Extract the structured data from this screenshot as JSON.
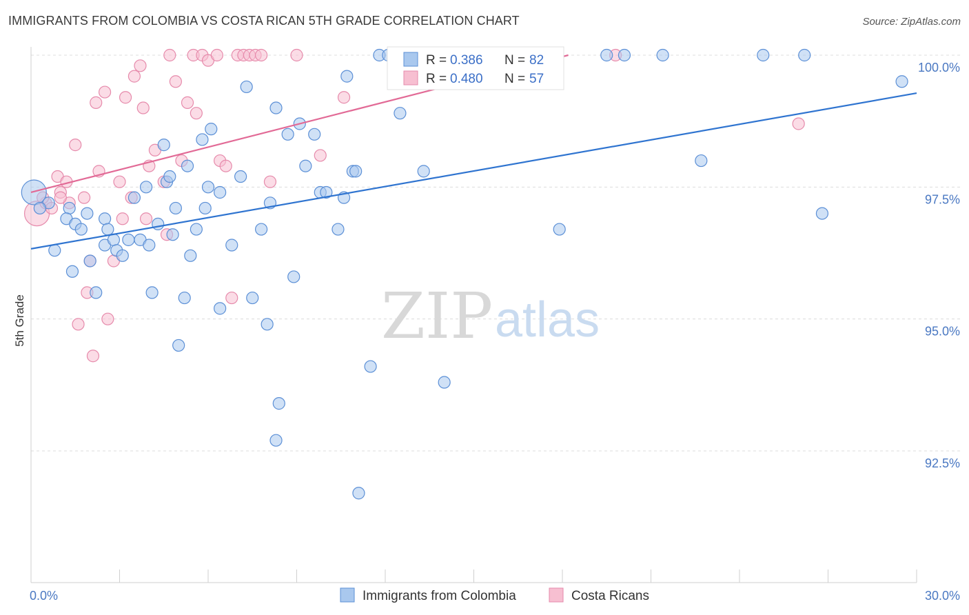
{
  "header": {
    "title": "IMMIGRANTS FROM COLOMBIA VS COSTA RICAN 5TH GRADE CORRELATION CHART",
    "source": "Source: ZipAtlas.com"
  },
  "watermark": {
    "zip": "ZIP",
    "atlas": "atlas"
  },
  "colors": {
    "blue_fill": "#a9c8ee",
    "blue_stroke": "#5b8fd6",
    "blue_line": "#2f74d0",
    "pink_fill": "#f7bfd1",
    "pink_stroke": "#e68aab",
    "pink_line": "#e26a96",
    "grid": "#dcdcdc",
    "tick_text": "#4a78c2"
  },
  "legend": {
    "rows": [
      {
        "r_label": "R =",
        "r_value": "0.386",
        "n_label": "N =",
        "n_value": "82"
      },
      {
        "r_label": "R =",
        "r_value": "0.480",
        "n_label": "N =",
        "n_value": "57"
      }
    ]
  },
  "bottom_legend": [
    "Immigrants from Colombia",
    "Costa Ricans"
  ],
  "chart_data": {
    "type": "scatter",
    "title": "IMMIGRANTS FROM COLOMBIA VS COSTA RICAN 5TH GRADE CORRELATION CHART",
    "ylabel": "5th Grade",
    "xlabel": "",
    "xlim": [
      0,
      30
    ],
    "ylim": [
      90.0,
      100.2
    ],
    "x_tick_labels": [
      "0.0%",
      "30.0%"
    ],
    "y_ticks": [
      92.5,
      95.0,
      97.5,
      100.0
    ],
    "y_tick_labels": [
      "92.5%",
      "95.0%",
      "97.5%",
      "100.0%"
    ],
    "grid": true,
    "series": [
      {
        "name": "Immigrants from Colombia",
        "R": 0.386,
        "N": 82,
        "trend": {
          "x": [
            0,
            30
          ],
          "y": [
            96.33,
            99.28
          ]
        },
        "points": [
          {
            "x": 0.1,
            "y": 97.4,
            "big": true
          },
          {
            "x": 0.6,
            "y": 97.2
          },
          {
            "x": 1.3,
            "y": 97.1
          },
          {
            "x": 1.9,
            "y": 97.0
          },
          {
            "x": 1.2,
            "y": 96.9
          },
          {
            "x": 1.5,
            "y": 96.8
          },
          {
            "x": 2.5,
            "y": 96.9
          },
          {
            "x": 1.7,
            "y": 96.7
          },
          {
            "x": 0.8,
            "y": 96.3
          },
          {
            "x": 1.4,
            "y": 95.9
          },
          {
            "x": 2.0,
            "y": 96.1
          },
          {
            "x": 2.2,
            "y": 95.5
          },
          {
            "x": 2.6,
            "y": 96.7
          },
          {
            "x": 2.5,
            "y": 96.4
          },
          {
            "x": 2.8,
            "y": 96.5
          },
          {
            "x": 2.9,
            "y": 96.3
          },
          {
            "x": 3.1,
            "y": 96.2
          },
          {
            "x": 3.3,
            "y": 96.5
          },
          {
            "x": 3.5,
            "y": 97.3
          },
          {
            "x": 3.7,
            "y": 96.5
          },
          {
            "x": 3.9,
            "y": 97.5
          },
          {
            "x": 4.0,
            "y": 96.4
          },
          {
            "x": 4.3,
            "y": 96.8
          },
          {
            "x": 4.1,
            "y": 95.5
          },
          {
            "x": 4.5,
            "y": 98.3
          },
          {
            "x": 4.6,
            "y": 97.6
          },
          {
            "x": 4.7,
            "y": 97.7
          },
          {
            "x": 4.8,
            "y": 96.6
          },
          {
            "x": 4.9,
            "y": 97.1
          },
          {
            "x": 5.0,
            "y": 94.5
          },
          {
            "x": 5.2,
            "y": 95.4
          },
          {
            "x": 5.3,
            "y": 97.9
          },
          {
            "x": 5.4,
            "y": 96.2
          },
          {
            "x": 5.6,
            "y": 96.7
          },
          {
            "x": 5.8,
            "y": 98.4
          },
          {
            "x": 5.9,
            "y": 97.1
          },
          {
            "x": 6.0,
            "y": 97.5
          },
          {
            "x": 6.1,
            "y": 98.6
          },
          {
            "x": 6.4,
            "y": 97.4
          },
          {
            "x": 6.4,
            "y": 95.2
          },
          {
            "x": 6.8,
            "y": 96.4
          },
          {
            "x": 7.1,
            "y": 97.7
          },
          {
            "x": 7.3,
            "y": 99.4
          },
          {
            "x": 7.5,
            "y": 95.4
          },
          {
            "x": 7.8,
            "y": 96.7
          },
          {
            "x": 8.0,
            "y": 94.9
          },
          {
            "x": 8.1,
            "y": 97.2
          },
          {
            "x": 8.3,
            "y": 99.0
          },
          {
            "x": 8.4,
            "y": 93.4
          },
          {
            "x": 8.3,
            "y": 92.7
          },
          {
            "x": 8.7,
            "y": 98.5
          },
          {
            "x": 8.9,
            "y": 95.8
          },
          {
            "x": 9.1,
            "y": 98.7
          },
          {
            "x": 9.3,
            "y": 97.9
          },
          {
            "x": 9.6,
            "y": 98.5
          },
          {
            "x": 9.8,
            "y": 97.4
          },
          {
            "x": 10.0,
            "y": 97.4
          },
          {
            "x": 10.4,
            "y": 96.7
          },
          {
            "x": 10.6,
            "y": 97.3
          },
          {
            "x": 10.7,
            "y": 99.6
          },
          {
            "x": 10.9,
            "y": 97.8
          },
          {
            "x": 11.0,
            "y": 97.8
          },
          {
            "x": 11.1,
            "y": 91.7
          },
          {
            "x": 11.5,
            "y": 94.1
          },
          {
            "x": 11.8,
            "y": 100.0
          },
          {
            "x": 12.1,
            "y": 100.0
          },
          {
            "x": 12.3,
            "y": 100.0
          },
          {
            "x": 12.5,
            "y": 98.9
          },
          {
            "x": 13.3,
            "y": 97.8
          },
          {
            "x": 14.0,
            "y": 93.8
          },
          {
            "x": 15.2,
            "y": 100.0
          },
          {
            "x": 16.2,
            "y": 100.0
          },
          {
            "x": 17.9,
            "y": 96.7
          },
          {
            "x": 19.5,
            "y": 100.0
          },
          {
            "x": 20.1,
            "y": 100.0
          },
          {
            "x": 21.4,
            "y": 100.0
          },
          {
            "x": 22.7,
            "y": 98.0
          },
          {
            "x": 24.8,
            "y": 100.0
          },
          {
            "x": 26.2,
            "y": 100.0
          },
          {
            "x": 26.8,
            "y": 97.0
          },
          {
            "x": 29.5,
            "y": 99.5
          },
          {
            "x": 0.3,
            "y": 97.1
          }
        ]
      },
      {
        "name": "Costa Ricans",
        "R": 0.48,
        "N": 57,
        "trend": {
          "x": [
            0,
            18.2
          ],
          "y": [
            97.4,
            100.0
          ]
        },
        "points": [
          {
            "x": 0.2,
            "y": 97.0,
            "big": true
          },
          {
            "x": 0.5,
            "y": 97.2
          },
          {
            "x": 0.7,
            "y": 97.1
          },
          {
            "x": 0.9,
            "y": 97.7
          },
          {
            "x": 1.0,
            "y": 97.4
          },
          {
            "x": 1.2,
            "y": 97.6
          },
          {
            "x": 1.3,
            "y": 97.2
          },
          {
            "x": 1.5,
            "y": 98.3
          },
          {
            "x": 1.6,
            "y": 94.9
          },
          {
            "x": 1.8,
            "y": 97.3
          },
          {
            "x": 1.9,
            "y": 95.5
          },
          {
            "x": 2.0,
            "y": 96.1
          },
          {
            "x": 2.1,
            "y": 94.3
          },
          {
            "x": 2.2,
            "y": 99.1
          },
          {
            "x": 2.3,
            "y": 97.8
          },
          {
            "x": 2.5,
            "y": 99.3
          },
          {
            "x": 2.6,
            "y": 95.0
          },
          {
            "x": 2.8,
            "y": 96.1
          },
          {
            "x": 3.0,
            "y": 97.6
          },
          {
            "x": 3.1,
            "y": 96.9
          },
          {
            "x": 3.2,
            "y": 99.2
          },
          {
            "x": 3.4,
            "y": 97.3
          },
          {
            "x": 3.5,
            "y": 99.6
          },
          {
            "x": 3.7,
            "y": 99.8
          },
          {
            "x": 3.8,
            "y": 99.0
          },
          {
            "x": 3.9,
            "y": 96.9
          },
          {
            "x": 4.0,
            "y": 97.9
          },
          {
            "x": 4.2,
            "y": 98.2
          },
          {
            "x": 4.5,
            "y": 97.6
          },
          {
            "x": 4.6,
            "y": 96.6
          },
          {
            "x": 4.7,
            "y": 100.0
          },
          {
            "x": 4.9,
            "y": 99.5
          },
          {
            "x": 5.1,
            "y": 98.0
          },
          {
            "x": 5.3,
            "y": 99.1
          },
          {
            "x": 5.5,
            "y": 100.0
          },
          {
            "x": 5.6,
            "y": 98.9
          },
          {
            "x": 5.8,
            "y": 100.0
          },
          {
            "x": 6.0,
            "y": 99.9
          },
          {
            "x": 6.3,
            "y": 100.0
          },
          {
            "x": 6.4,
            "y": 98.0
          },
          {
            "x": 6.6,
            "y": 97.9
          },
          {
            "x": 6.8,
            "y": 95.4
          },
          {
            "x": 7.0,
            "y": 100.0
          },
          {
            "x": 7.2,
            "y": 100.0
          },
          {
            "x": 7.4,
            "y": 100.0
          },
          {
            "x": 7.6,
            "y": 100.0
          },
          {
            "x": 7.8,
            "y": 100.0
          },
          {
            "x": 8.1,
            "y": 97.6
          },
          {
            "x": 9.0,
            "y": 100.0
          },
          {
            "x": 9.8,
            "y": 98.1
          },
          {
            "x": 10.6,
            "y": 99.2
          },
          {
            "x": 12.3,
            "y": 100.0
          },
          {
            "x": 16.4,
            "y": 100.0
          },
          {
            "x": 19.8,
            "y": 100.0
          },
          {
            "x": 26.0,
            "y": 98.7
          },
          {
            "x": 0.4,
            "y": 97.3
          },
          {
            "x": 1.0,
            "y": 97.3
          }
        ]
      }
    ]
  }
}
